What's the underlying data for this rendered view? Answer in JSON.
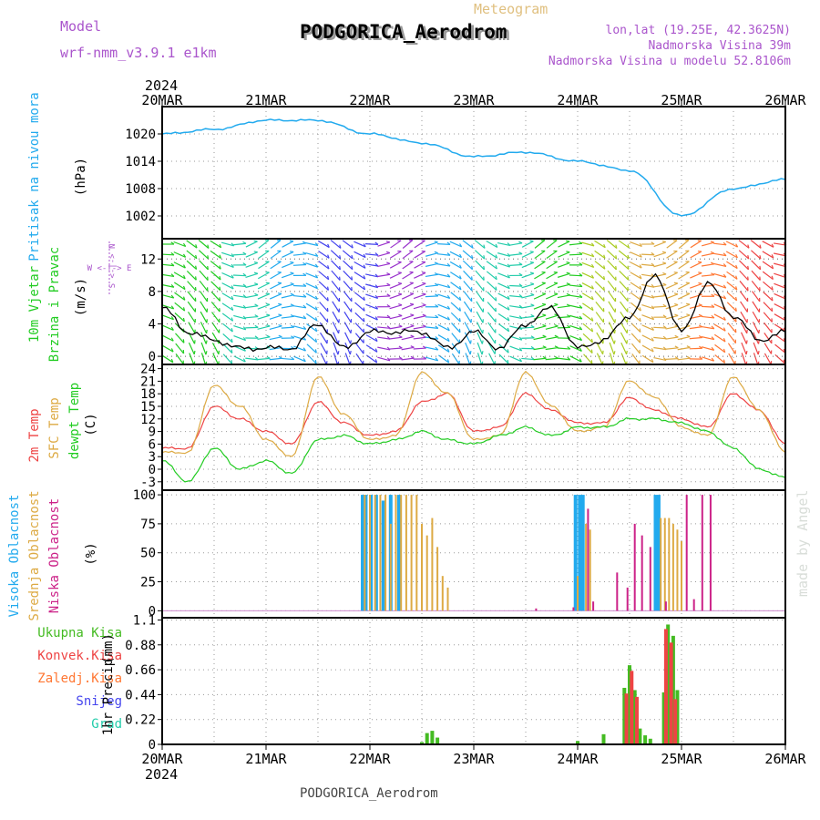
{
  "header": {
    "model_label": "Model",
    "model_name": "wrf-nmm_v3.9.1 e1km",
    "meteogram_label": "Meteogram",
    "station_title": "PODGORICA_Aerodrom",
    "coords": "lon,lat (19.25E, 42.3625N)",
    "elevation": "Nadmorska Visina 39m",
    "model_elevation": "Nadmorska Visina u modelu 52.8106m",
    "footer_station": "PODGORICA_Aerodrom",
    "credit": "made by Angel"
  },
  "colors": {
    "pressure": "#22aaee",
    "wind_speed": "#000000",
    "temp_2m": "#ee4444",
    "temp_sfc": "#ddaa44",
    "dewpoint": "#22cc22",
    "cloud_high": "#22aaee",
    "cloud_mid": "#ddaa44",
    "cloud_low": "#cc2288",
    "precip_total": "#44bb22",
    "precip_conv": "#ee4444",
    "precip_frozen": "#ff7733",
    "precip_snow": "#4444ee",
    "precip_grad": "#22ccaa",
    "wind_label": "#aa55cc"
  },
  "chart_data": [
    {
      "type": "line",
      "name": "pressure",
      "ylabel_1": "Pritisak na nivou mora",
      "ylabel_2": "(hPa)",
      "ylim": [
        997,
        1026
      ],
      "yticks": [
        1002,
        1008,
        1014,
        1020
      ],
      "x_days": [
        0,
        0.5,
        1,
        1.5,
        2,
        2.5,
        3,
        3.5,
        4,
        4.5,
        5,
        5.5,
        6
      ],
      "series": [
        {
          "values": [
            1020,
            1021,
            1023,
            1023,
            1020,
            1018,
            1015,
            1016,
            1014,
            1012,
            1002,
            1008,
            1010
          ]
        }
      ]
    },
    {
      "type": "line",
      "name": "wind",
      "ylabel_1": "10m Vjetar",
      "ylabel_2": "Brzina i Pravac",
      "ylabel_3": "(m/s)",
      "compass_label": "W <-|-> E",
      "compass_sub": "S <-|-> N",
      "ylim": [
        -1,
        14.5
      ],
      "yticks": [
        0,
        4,
        8,
        12
      ],
      "x_days": [
        0,
        0.25,
        0.5,
        0.75,
        1,
        1.25,
        1.5,
        1.75,
        2,
        2.25,
        2.5,
        2.75,
        3,
        3.25,
        3.5,
        3.75,
        4,
        4.25,
        4.5,
        4.75,
        5,
        5.25,
        5.5,
        5.75,
        6
      ],
      "series": [
        {
          "name": "",
          "values": [
            6,
            3,
            2,
            1,
            1,
            1,
            4,
            1,
            3,
            3,
            3,
            1,
            3,
            1,
            4,
            6,
            1,
            2,
            5,
            10,
            3,
            9,
            5,
            2,
            3
          ]
        }
      ]
    },
    {
      "type": "line",
      "name": "temperature",
      "ylabel_1": "2m Temp",
      "ylabel_2": "SFC Temp",
      "ylabel_3": "dewpt Temp",
      "ylabel_4": "(C)",
      "ylim": [
        -5,
        25
      ],
      "yticks": [
        -3,
        0,
        3,
        6,
        9,
        12,
        15,
        18,
        21,
        24
      ],
      "x_days": [
        0,
        0.25,
        0.5,
        0.75,
        1,
        1.25,
        1.5,
        1.75,
        2,
        2.25,
        2.5,
        2.75,
        3,
        3.25,
        3.5,
        3.75,
        4,
        4.25,
        4.5,
        4.75,
        5,
        5.25,
        5.5,
        5.75,
        6
      ],
      "series": [
        {
          "name": "2m Temp",
          "values": [
            5,
            5,
            15,
            12,
            9,
            6,
            16,
            11,
            8,
            9,
            16,
            18,
            9,
            10,
            18,
            14,
            11,
            11,
            17,
            14,
            12,
            10,
            18,
            14,
            6
          ]
        },
        {
          "name": "SFC Temp",
          "values": [
            4,
            4,
            20,
            15,
            7,
            3,
            22,
            13,
            7,
            8,
            23,
            18,
            7,
            8,
            23,
            15,
            9,
            10,
            21,
            17,
            10,
            8,
            22,
            14,
            4
          ]
        },
        {
          "name": "dewpt Temp",
          "values": [
            2,
            -3,
            5,
            0,
            2,
            -1,
            7,
            8,
            6,
            7,
            9,
            7,
            6,
            8,
            10,
            8,
            10,
            10,
            12,
            12,
            11,
            9,
            5,
            0,
            -2
          ]
        }
      ]
    },
    {
      "type": "bar",
      "name": "clouds",
      "ylabel_1": "Visoka Oblacnost",
      "ylabel_2": "Srednja Oblacnost",
      "ylabel_3": "Niska Oblacnost",
      "ylabel_4": "(%)",
      "ylim": [
        -6,
        104
      ],
      "yticks": [
        0,
        25,
        50,
        75,
        100
      ],
      "series": [
        {
          "name": "Visoka Oblacnost",
          "x_days": [
            1.93,
            1.96,
            2.01,
            2.06,
            2.13,
            2.2,
            2.28,
            3.98,
            4.02,
            4.05,
            4.75,
            4.78
          ],
          "values": [
            100,
            100,
            100,
            100,
            95,
            100,
            100,
            100,
            100,
            100,
            100,
            100
          ]
        },
        {
          "name": "Srednja Oblacnost",
          "x_days": [
            1.95,
            2.0,
            2.05,
            2.1,
            2.15,
            2.2,
            2.25,
            2.3,
            2.35,
            2.4,
            2.45,
            2.5,
            2.55,
            2.6,
            2.65,
            2.7,
            2.75,
            4.0,
            4.08,
            4.12,
            4.8,
            4.84,
            4.88,
            4.92,
            4.96,
            5.0
          ],
          "values": [
            100,
            100,
            100,
            100,
            100,
            75,
            100,
            100,
            100,
            100,
            100,
            75,
            65,
            80,
            55,
            30,
            20,
            30,
            75,
            70,
            80,
            80,
            80,
            75,
            70,
            60
          ]
        },
        {
          "name": "Niska Oblacnost",
          "x_days": [
            3.6,
            3.96,
            4.1,
            4.15,
            4.38,
            4.48,
            4.55,
            4.62,
            4.7,
            4.85,
            5.05,
            5.12,
            5.2,
            5.28
          ],
          "values": [
            2,
            3,
            88,
            8,
            33,
            20,
            75,
            65,
            55,
            8,
            100,
            10,
            100,
            100
          ]
        }
      ]
    },
    {
      "type": "bar",
      "name": "precipitation",
      "ylabel_1": "1hr Precip",
      "ylabel_2": "(mm)",
      "ylim": [
        0,
        1.12
      ],
      "yticks": [
        0,
        0.22,
        0.44,
        0.66,
        0.88,
        1.1
      ],
      "ytick_labels": [
        "0",
        "0.22",
        "0.44",
        "0.66",
        "0.88",
        "1.1"
      ],
      "series": [
        {
          "name": "Ukupna Kisa",
          "x_days": [
            2.5,
            2.55,
            2.6,
            2.65,
            4.0,
            4.25,
            4.45,
            4.5,
            4.55,
            4.6,
            4.65,
            4.7,
            4.83,
            4.87,
            4.92,
            4.96
          ],
          "values": [
            0.02,
            0.1,
            0.12,
            0.06,
            0.03,
            0.09,
            0.5,
            0.7,
            0.48,
            0.14,
            0.08,
            0.05,
            0.46,
            1.06,
            0.96,
            0.48
          ]
        },
        {
          "name": "Konvek.Kisa",
          "x_days": [
            4.47,
            4.52,
            4.57,
            4.85,
            4.9,
            4.94
          ],
          "values": [
            0.45,
            0.65,
            0.42,
            1.02,
            0.9,
            0.4
          ]
        },
        {
          "name": "Zaledj.Kisa",
          "x_days": [],
          "values": []
        },
        {
          "name": "Snijeg",
          "x_days": [],
          "values": []
        },
        {
          "name": "Grad",
          "x_days": [],
          "values": []
        }
      ]
    }
  ],
  "x_axis": {
    "year": "2024",
    "day_labels": [
      "20MAR",
      "21MAR",
      "22MAR",
      "23MAR",
      "24MAR",
      "25MAR",
      "26MAR"
    ]
  }
}
